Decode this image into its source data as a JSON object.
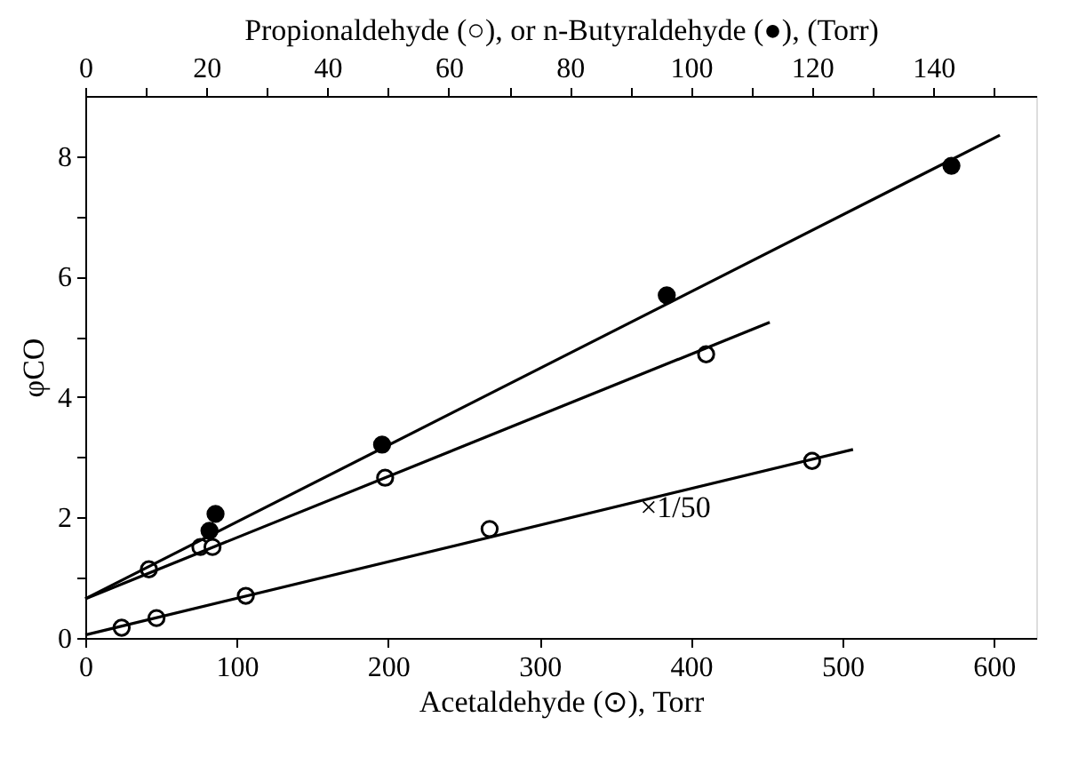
{
  "chart_data": {
    "type": "scatter",
    "xlabel": "Acetaldehyde (⊙), Torr",
    "x2label": "Propionaldehyde (○), or n-Butyraldehyde (●), (Torr)",
    "ylabel": "φCO",
    "xlim": [
      0,
      628
    ],
    "xticks": [
      0,
      100,
      200,
      300,
      400,
      500,
      600
    ],
    "x2lim": [
      0,
      157
    ],
    "x2ticks": [
      0,
      {
        "value": 10,
        "label": null
      },
      20,
      {
        "value": 30,
        "label": null
      },
      40,
      {
        "value": 50,
        "label": null
      },
      60,
      {
        "value": 70,
        "label": null
      },
      80,
      {
        "value": 90,
        "label": null
      },
      100,
      {
        "value": 110,
        "label": null
      },
      120,
      {
        "value": 130,
        "label": null
      },
      140,
      {
        "value": 150,
        "label": null
      }
    ],
    "ylim": [
      0,
      9
    ],
    "yticks": [
      0,
      {
        "value": 1,
        "label": null
      },
      2,
      {
        "value": 3,
        "label": null
      },
      4,
      {
        "value": 5,
        "label": null
      },
      6,
      {
        "value": 7,
        "label": null
      },
      8
    ],
    "grid": false,
    "annotations": [
      "×1/50"
    ],
    "series": [
      {
        "marker": "circle",
        "color": "#ffffff",
        "x": [
          24,
          47,
          106,
          267,
          480
        ],
        "values": [
          0.17,
          0.33,
          0.7,
          1.81,
          2.94
        ]
      },
      {
        "type": "line",
        "marker": "none",
        "line_style": "solid",
        "color": "#000000",
        "x": [
          0,
          507
        ],
        "values": [
          0.05,
          3.13
        ]
      },
      {
        "marker": "circle",
        "axis": "x2",
        "color": "#ffffff",
        "x": [
          10.5,
          19,
          21,
          49.5,
          102.5
        ],
        "values": [
          1.14,
          1.51,
          1.51,
          2.66,
          4.71
        ]
      },
      {
        "type": "line",
        "marker": "none",
        "line_style": "solid",
        "axis": "x2",
        "color": "#000000",
        "x": [
          0,
          113
        ],
        "values": [
          0.65,
          5.24
        ]
      },
      {
        "marker": "circle",
        "axis": "x2",
        "color": "#000000",
        "x": [
          20.5,
          21.5,
          49,
          96,
          143
        ],
        "values": [
          1.78,
          2.06,
          3.21,
          5.69,
          7.84
        ]
      },
      {
        "type": "line",
        "marker": "none",
        "line_style": "solid",
        "axis": "x2",
        "color": "#000000",
        "x": [
          0,
          151
        ],
        "values": [
          0.65,
          8.35
        ]
      }
    ]
  }
}
